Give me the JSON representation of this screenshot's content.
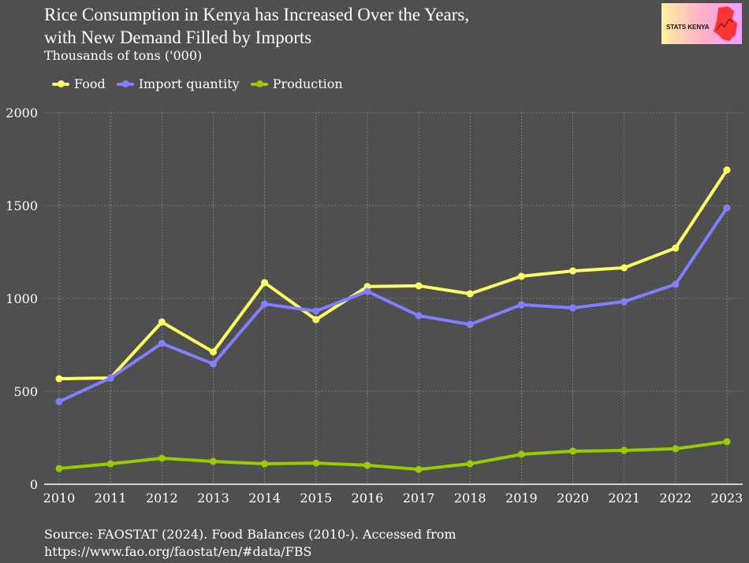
{
  "title_line1": "Rice Consumption in Kenya has Increased Over the Years,",
  "title_line2": "with New Demand Filled by Imports",
  "logo_text": "STATS KENYA",
  "source_line1": "Source: FAOSTAT (2024). Food Balances (2010-). Accessed from",
  "source_line2": "https://www.fao.org/faostat/en/#data/FBS",
  "chart_data": {
    "type": "line",
    "title": "Rice Consumption in Kenya has Increased Over the Years, with New Demand Filled by Imports",
    "subtitle": "Thousands of tons ('000)",
    "xlabel": "",
    "ylabel": "",
    "x": [
      2010,
      2011,
      2012,
      2013,
      2014,
      2015,
      2016,
      2017,
      2018,
      2019,
      2020,
      2021,
      2022,
      2023
    ],
    "ylim": [
      0,
      2000
    ],
    "yticks": [
      0,
      500,
      1000,
      1500,
      2000
    ],
    "grid": true,
    "legend_placement": "top-left",
    "series": [
      {
        "name": "Food",
        "color": "#ffff66",
        "values": [
          568,
          572,
          873,
          712,
          1085,
          886,
          1064,
          1068,
          1025,
          1119,
          1148,
          1165,
          1271,
          1691
        ]
      },
      {
        "name": "Import quantity",
        "color": "#8080ff",
        "values": [
          445,
          572,
          758,
          648,
          970,
          932,
          1038,
          907,
          860,
          966,
          949,
          983,
          1076,
          1487
        ]
      },
      {
        "name": "Production",
        "color": "#99cc00",
        "values": [
          85,
          110,
          140,
          123,
          110,
          114,
          102,
          80,
          110,
          161,
          178,
          182,
          191,
          229
        ]
      }
    ]
  }
}
